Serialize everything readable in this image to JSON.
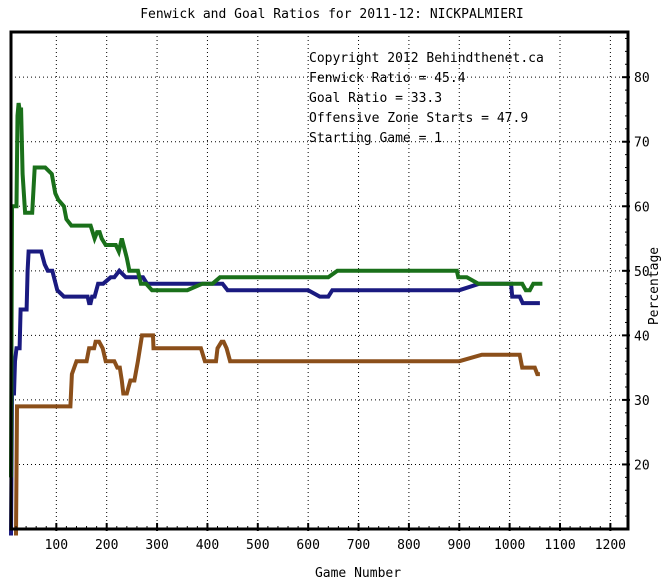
{
  "chart_data": {
    "type": "line",
    "title": "Fenwick and Goal Ratios for 2011-12: NICKPALMIERI",
    "xlabel": "Game Number",
    "ylabel": "Percentage",
    "xlim": [
      10,
      1235
    ],
    "ylim": [
      10,
      87
    ],
    "x_ticks": [
      100,
      200,
      300,
      400,
      500,
      600,
      700,
      800,
      900,
      1000,
      1100,
      1200
    ],
    "y_ticks": [
      20,
      30,
      40,
      50,
      60,
      70,
      80
    ],
    "y_axis_side": "right",
    "grid": true,
    "legend": {
      "position": "top-right",
      "lines": [
        {
          "text": "Copyright 2012 Behindthenet.ca",
          "color": "#000000"
        },
        {
          "text": "Fenwick Ratio = 45.4",
          "color": "#1a1a80"
        },
        {
          "text": "Goal Ratio = 33.3",
          "color": "#8b4f1a"
        },
        {
          "text": "Offensive Zone Starts = 47.9",
          "color": "#1a701a"
        },
        {
          "text": "Starting Game = 1",
          "color": "#000000"
        }
      ]
    },
    "series": [
      {
        "color": "#1a1a80",
        "points": [
          [
            10,
            9
          ],
          [
            12,
            31
          ],
          [
            16,
            31
          ],
          [
            18,
            36
          ],
          [
            21,
            38
          ],
          [
            27,
            38
          ],
          [
            29,
            44
          ],
          [
            41,
            44
          ],
          [
            43,
            50
          ],
          [
            45,
            53
          ],
          [
            55,
            53
          ],
          [
            70,
            53
          ],
          [
            77,
            51
          ],
          [
            83,
            50
          ],
          [
            92,
            50
          ],
          [
            102,
            47
          ],
          [
            115,
            46
          ],
          [
            130,
            46
          ],
          [
            142,
            46
          ],
          [
            155,
            46
          ],
          [
            162,
            46
          ],
          [
            165,
            45
          ],
          [
            168,
            45
          ],
          [
            171,
            46
          ],
          [
            176,
            46
          ],
          [
            183,
            48
          ],
          [
            193,
            48
          ],
          [
            208,
            49
          ],
          [
            215,
            49
          ],
          [
            225,
            50
          ],
          [
            238,
            49
          ],
          [
            250,
            49
          ],
          [
            265,
            49
          ],
          [
            272,
            49
          ],
          [
            280,
            48
          ],
          [
            290,
            48
          ],
          [
            300,
            48
          ],
          [
            340,
            48
          ],
          [
            370,
            48
          ],
          [
            390,
            48
          ],
          [
            405,
            48
          ],
          [
            412,
            48
          ],
          [
            415,
            48
          ],
          [
            430,
            48
          ],
          [
            440,
            47
          ],
          [
            465,
            47
          ],
          [
            510,
            47
          ],
          [
            540,
            47
          ],
          [
            568,
            47
          ],
          [
            600,
            47
          ],
          [
            623,
            46
          ],
          [
            640,
            46
          ],
          [
            648,
            47
          ],
          [
            690,
            47
          ],
          [
            745,
            47
          ],
          [
            830,
            47
          ],
          [
            862,
            47
          ],
          [
            880,
            47
          ],
          [
            900,
            47
          ],
          [
            940,
            48
          ],
          [
            960,
            48
          ],
          [
            990,
            48
          ],
          [
            1003,
            48
          ],
          [
            1005,
            46
          ],
          [
            1020,
            46
          ],
          [
            1026,
            45
          ],
          [
            1038,
            45
          ],
          [
            1045,
            45
          ],
          [
            1060,
            45
          ]
        ]
      },
      {
        "color": "#8b4f1a",
        "points": [
          [
            20,
            9
          ],
          [
            22,
            29
          ],
          [
            65,
            29
          ],
          [
            90,
            29
          ],
          [
            102,
            29
          ],
          [
            120,
            29
          ],
          [
            128,
            29
          ],
          [
            131,
            34
          ],
          [
            140,
            36
          ],
          [
            160,
            36
          ],
          [
            165,
            38
          ],
          [
            175,
            38
          ],
          [
            178,
            39
          ],
          [
            185,
            39
          ],
          [
            192,
            38
          ],
          [
            198,
            36
          ],
          [
            210,
            36
          ],
          [
            215,
            36
          ],
          [
            221,
            35
          ],
          [
            226,
            35
          ],
          [
            230,
            33
          ],
          [
            233,
            31
          ],
          [
            240,
            31
          ],
          [
            247,
            33
          ],
          [
            255,
            33
          ],
          [
            262,
            36
          ],
          [
            270,
            40
          ],
          [
            278,
            40
          ],
          [
            292,
            40
          ],
          [
            293,
            38
          ],
          [
            355,
            38
          ],
          [
            387,
            38
          ],
          [
            395,
            36
          ],
          [
            417,
            36
          ],
          [
            420,
            38
          ],
          [
            428,
            39
          ],
          [
            432,
            39
          ],
          [
            438,
            38
          ],
          [
            445,
            36
          ],
          [
            470,
            36
          ],
          [
            520,
            36
          ],
          [
            600,
            36
          ],
          [
            700,
            36
          ],
          [
            800,
            36
          ],
          [
            900,
            36
          ],
          [
            945,
            37
          ],
          [
            960,
            37
          ],
          [
            1003,
            37
          ],
          [
            1020,
            37
          ],
          [
            1025,
            35
          ],
          [
            1030,
            35
          ],
          [
            1050,
            35
          ],
          [
            1055,
            34
          ],
          [
            1060,
            34
          ]
        ]
      },
      {
        "color": "#1a701a",
        "points": [
          [
            10,
            18
          ],
          [
            12,
            60
          ],
          [
            21,
            60
          ],
          [
            23,
            74
          ],
          [
            25,
            76
          ],
          [
            27,
            75
          ],
          [
            30,
            75
          ],
          [
            33,
            65
          ],
          [
            38,
            59
          ],
          [
            52,
            59
          ],
          [
            57,
            66
          ],
          [
            70,
            66
          ],
          [
            78,
            66
          ],
          [
            91,
            65
          ],
          [
            98,
            62
          ],
          [
            104,
            61
          ],
          [
            115,
            60
          ],
          [
            120,
            58
          ],
          [
            130,
            57
          ],
          [
            140,
            57
          ],
          [
            155,
            57
          ],
          [
            168,
            57
          ],
          [
            176,
            55
          ],
          [
            181,
            56
          ],
          [
            186,
            56
          ],
          [
            190,
            55
          ],
          [
            198,
            54
          ],
          [
            210,
            54
          ],
          [
            218,
            54
          ],
          [
            224,
            53
          ],
          [
            230,
            55
          ],
          [
            240,
            52
          ],
          [
            245,
            50
          ],
          [
            250,
            50
          ],
          [
            262,
            50
          ],
          [
            268,
            48
          ],
          [
            278,
            48
          ],
          [
            290,
            47
          ],
          [
            315,
            47
          ],
          [
            340,
            47
          ],
          [
            360,
            47
          ],
          [
            390,
            48
          ],
          [
            405,
            48
          ],
          [
            410,
            48
          ],
          [
            425,
            49
          ],
          [
            445,
            49
          ],
          [
            520,
            49
          ],
          [
            600,
            49
          ],
          [
            640,
            49
          ],
          [
            658,
            50
          ],
          [
            700,
            50
          ],
          [
            740,
            50
          ],
          [
            800,
            50
          ],
          [
            860,
            50
          ],
          [
            880,
            50
          ],
          [
            895,
            50
          ],
          [
            898,
            49
          ],
          [
            915,
            49
          ],
          [
            938,
            48
          ],
          [
            975,
            48
          ],
          [
            1000,
            48
          ],
          [
            1015,
            48
          ],
          [
            1025,
            48
          ],
          [
            1032,
            47
          ],
          [
            1040,
            47
          ],
          [
            1047,
            48
          ],
          [
            1065,
            48
          ]
        ]
      }
    ]
  }
}
